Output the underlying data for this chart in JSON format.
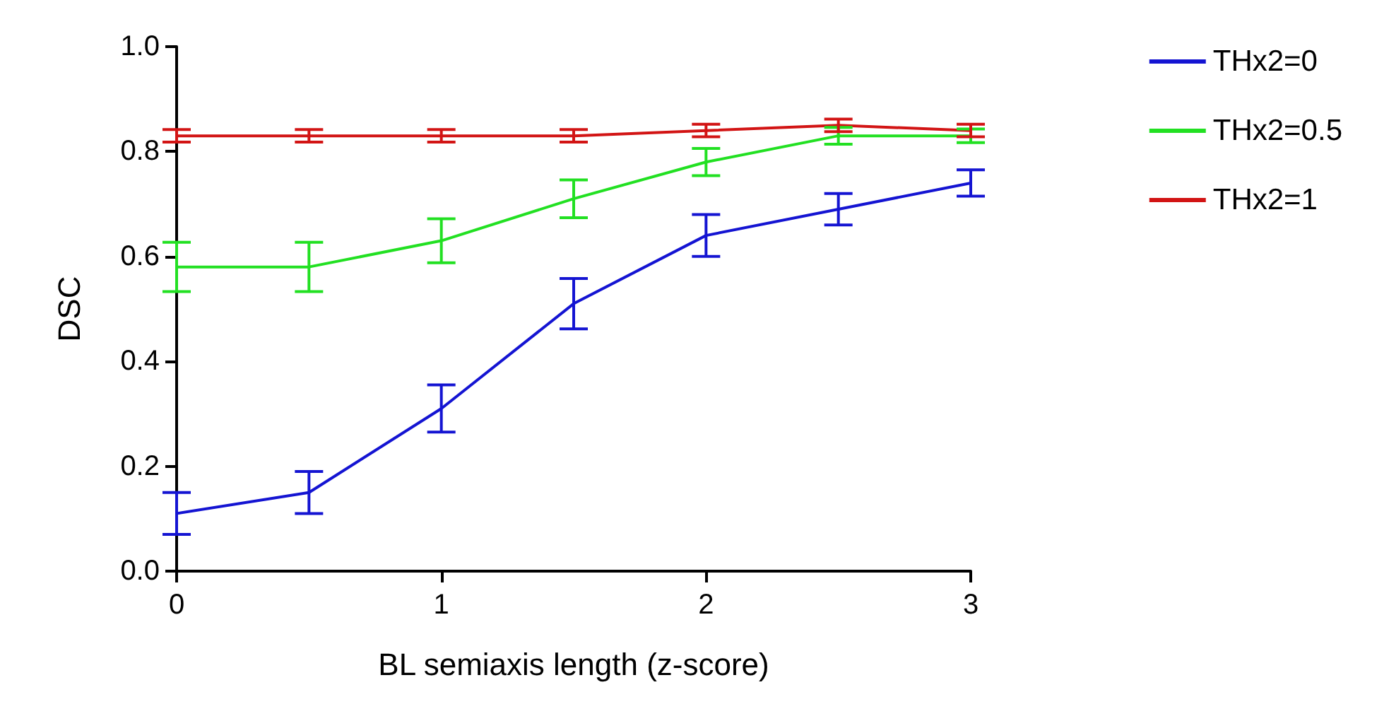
{
  "chart_data": {
    "type": "line",
    "xlabel": "BL semiaxis length (z-score)",
    "ylabel": "DSC",
    "x": [
      0,
      0.5,
      1,
      1.5,
      2,
      2.5,
      3
    ],
    "series": [
      {
        "name": "THx2=0",
        "color": "#1414d2",
        "values": [
          0.11,
          0.15,
          0.31,
          0.51,
          0.64,
          0.69,
          0.74
        ],
        "errors": [
          0.04,
          0.04,
          0.045,
          0.048,
          0.04,
          0.03,
          0.025
        ]
      },
      {
        "name": "THx2=0.5",
        "color": "#22e022",
        "values": [
          0.58,
          0.58,
          0.63,
          0.71,
          0.78,
          0.83,
          0.83
        ],
        "errors": [
          0.047,
          0.047,
          0.042,
          0.036,
          0.026,
          0.016,
          0.013
        ]
      },
      {
        "name": "THx2=1",
        "color": "#d21414",
        "values": [
          0.83,
          0.83,
          0.83,
          0.83,
          0.84,
          0.85,
          0.84
        ],
        "errors": [
          0.012,
          0.012,
          0.012,
          0.012,
          0.012,
          0.012,
          0.012
        ]
      }
    ],
    "xlim": [
      0,
      3
    ],
    "xticks": [
      0,
      1,
      2,
      3
    ],
    "ylim": [
      0,
      1
    ],
    "yticks": [
      {
        "value": 0,
        "label": "0.0"
      },
      0.2,
      0.4,
      0.6,
      0.8,
      {
        "value": 1,
        "label": "1.0"
      }
    ],
    "grid": false,
    "legend": "top right",
    "marker": "none",
    "line_style": "solid"
  }
}
